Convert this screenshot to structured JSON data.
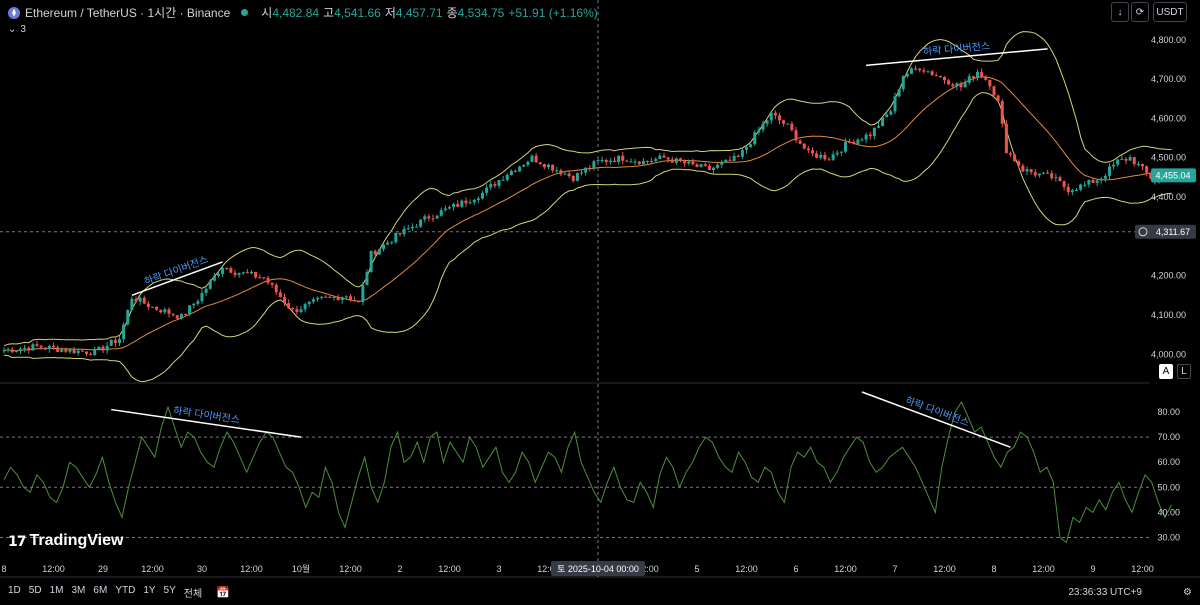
{
  "header": {
    "title": "Ethereum / TetherUS · 1시간 · Binance",
    "ohlc": [
      {
        "key": "시",
        "value": "4,482.84"
      },
      {
        "key": "고",
        "value": "4,541.66"
      },
      {
        "key": "저",
        "value": "4,457.71"
      },
      {
        "key": "종",
        "value": "4,534.75"
      },
      {
        "key": "",
        "value": "+51.91 (+1.16%)"
      }
    ],
    "indicator_count": "3",
    "currency": "USDT"
  },
  "pane_buttons": {
    "auto": "A",
    "log": "L"
  },
  "watermark": "TradingView",
  "bottom_bar": {
    "ranges": [
      "1D",
      "5D",
      "1M",
      "3M",
      "6M",
      "YTD",
      "1Y",
      "5Y",
      "전체"
    ],
    "clock": "23:36:33 UTC+9"
  },
  "colors": {
    "up": "#26a69a",
    "down": "#ef5350",
    "bollinger": "#d4d47a",
    "basis": "#e08a3c",
    "rsi": "#4c8f3a",
    "annotation": "#4a9bff"
  },
  "crosshair": {
    "price_label": "4,311.67",
    "date_label": "토 2025-10-04  00:00"
  },
  "last_price_label": "4,455.04",
  "chart_data": [
    {
      "type": "candlestick",
      "title": "Ethereum / TetherUS · 1시간 · Binance",
      "y_ticks": [
        "4,800.00",
        "4,700.00",
        "4,600.00",
        "4,500.00",
        "4,400.00",
        "4,200.00",
        "4,100.00",
        "4,000.00"
      ],
      "y_tick_values": [
        4800,
        4700,
        4600,
        4500,
        4400,
        4200,
        4100,
        4000
      ],
      "ylim": [
        3960,
        4830
      ],
      "x_ticks": [
        "8",
        "12:00",
        "29",
        "12:00",
        "30",
        "12:00",
        "10월",
        "12:00",
        "2",
        "12:00",
        "3",
        "12:00",
        "4",
        "12:00",
        "5",
        "12:00",
        "6",
        "12:00",
        "7",
        "12:00",
        "8",
        "12:00",
        "9",
        "12:00"
      ],
      "x_tick_index": [
        0,
        12,
        24,
        36,
        48,
        60,
        72,
        84,
        96,
        108,
        120,
        132,
        144,
        156,
        168,
        180,
        192,
        204,
        216,
        228,
        240,
        252,
        264,
        276
      ],
      "close_path": [
        [
          0,
          4010
        ],
        [
          8,
          4020
        ],
        [
          16,
          4010
        ],
        [
          22,
          4005
        ],
        [
          28,
          4040
        ],
        [
          31,
          4145
        ],
        [
          36,
          4120
        ],
        [
          43,
          4095
        ],
        [
          47,
          4140
        ],
        [
          53,
          4225
        ],
        [
          56,
          4210
        ],
        [
          63,
          4195
        ],
        [
          70,
          4110
        ],
        [
          77,
          4140
        ],
        [
          83,
          4150
        ],
        [
          86,
          4130
        ],
        [
          89,
          4255
        ],
        [
          95,
          4300
        ],
        [
          103,
          4350
        ],
        [
          110,
          4380
        ],
        [
          116,
          4410
        ],
        [
          122,
          4460
        ],
        [
          128,
          4500
        ],
        [
          134,
          4470
        ],
        [
          138,
          4450
        ],
        [
          144,
          4490
        ],
        [
          150,
          4500
        ],
        [
          155,
          4490
        ],
        [
          160,
          4500
        ],
        [
          167,
          4480
        ],
        [
          171,
          4470
        ],
        [
          178,
          4500
        ],
        [
          183,
          4570
        ],
        [
          186,
          4610
        ],
        [
          190,
          4580
        ],
        [
          195,
          4510
        ],
        [
          200,
          4500
        ],
        [
          205,
          4540
        ],
        [
          210,
          4560
        ],
        [
          215,
          4620
        ],
        [
          218,
          4710
        ],
        [
          222,
          4730
        ],
        [
          228,
          4700
        ],
        [
          232,
          4680
        ],
        [
          236,
          4720
        ],
        [
          239,
          4690
        ],
        [
          241,
          4640
        ],
        [
          243,
          4520
        ],
        [
          247,
          4470
        ],
        [
          250,
          4460
        ],
        [
          254,
          4450
        ],
        [
          258,
          4420
        ],
        [
          262,
          4430
        ],
        [
          266,
          4450
        ],
        [
          270,
          4490
        ],
        [
          273,
          4500
        ],
        [
          276,
          4470
        ],
        [
          279,
          4440
        ],
        [
          283,
          4455
        ]
      ],
      "overlays": [
        "bollinger_upper",
        "bollinger_basis",
        "bollinger_lower"
      ],
      "annotations": [
        {
          "label": "하락 다이버전스",
          "from": [
            31,
            4150
          ],
          "to": [
            53,
            4235
          ]
        },
        {
          "label": "하락 다이버전스",
          "from": [
            209,
            4735
          ],
          "to": [
            253,
            4777
          ]
        }
      ],
      "grid": false
    },
    {
      "type": "line",
      "series": [
        {
          "name": "",
          "values": [
            53,
            58,
            55,
            50,
            48,
            55,
            52,
            46,
            44,
            50,
            60,
            58,
            54,
            50,
            55,
            62,
            52,
            44,
            38,
            50,
            60,
            70,
            66,
            62,
            74,
            82,
            74,
            66,
            72,
            70,
            64,
            60,
            58,
            66,
            72,
            68,
            62,
            56,
            62,
            68,
            72,
            70,
            64,
            58,
            56,
            50,
            42,
            48,
            46,
            58,
            52,
            40,
            34,
            44,
            54,
            62,
            50,
            44,
            52,
            66,
            72,
            60,
            62,
            68,
            60,
            70,
            72,
            60,
            68,
            64,
            60,
            70,
            66,
            58,
            62,
            66,
            56,
            52,
            56,
            64,
            60,
            52,
            58,
            64,
            62,
            56,
            66,
            72,
            60,
            54,
            48,
            44,
            52,
            58,
            50,
            45,
            44,
            52,
            48,
            42,
            55,
            62,
            58,
            50,
            56,
            60,
            66,
            70,
            68,
            62,
            58,
            56,
            64,
            60,
            54,
            52,
            58,
            56,
            48,
            44,
            58,
            64,
            62,
            66,
            60,
            58,
            52,
            56,
            62,
            66,
            70,
            68,
            60,
            56,
            58,
            62,
            64,
            66,
            62,
            58,
            52,
            46,
            40,
            58,
            70,
            80,
            84,
            78,
            72,
            74,
            68,
            62,
            58,
            64,
            66,
            72,
            70,
            64,
            56,
            58,
            52,
            30,
            28,
            38,
            36,
            42,
            40,
            45,
            41,
            48,
            52,
            45,
            40,
            48,
            55,
            52,
            44,
            38,
            43
          ]
        }
      ],
      "y_ticks": [
        "80.00",
        "70.00",
        "60.00",
        "50.00",
        "40.00",
        "30.00"
      ],
      "y_tick_values": [
        80,
        70,
        60,
        50,
        40,
        30
      ],
      "ylim": [
        27,
        88
      ],
      "levels": [
        70,
        50,
        30
      ],
      "annotations": [
        {
          "label": "하락 다이버전스",
          "from": [
            26,
            81
          ],
          "to": [
            72,
            70
          ]
        },
        {
          "label": "하락 다이버전스",
          "from": [
            208,
            88
          ],
          "to": [
            244,
            66
          ]
        }
      ]
    }
  ]
}
